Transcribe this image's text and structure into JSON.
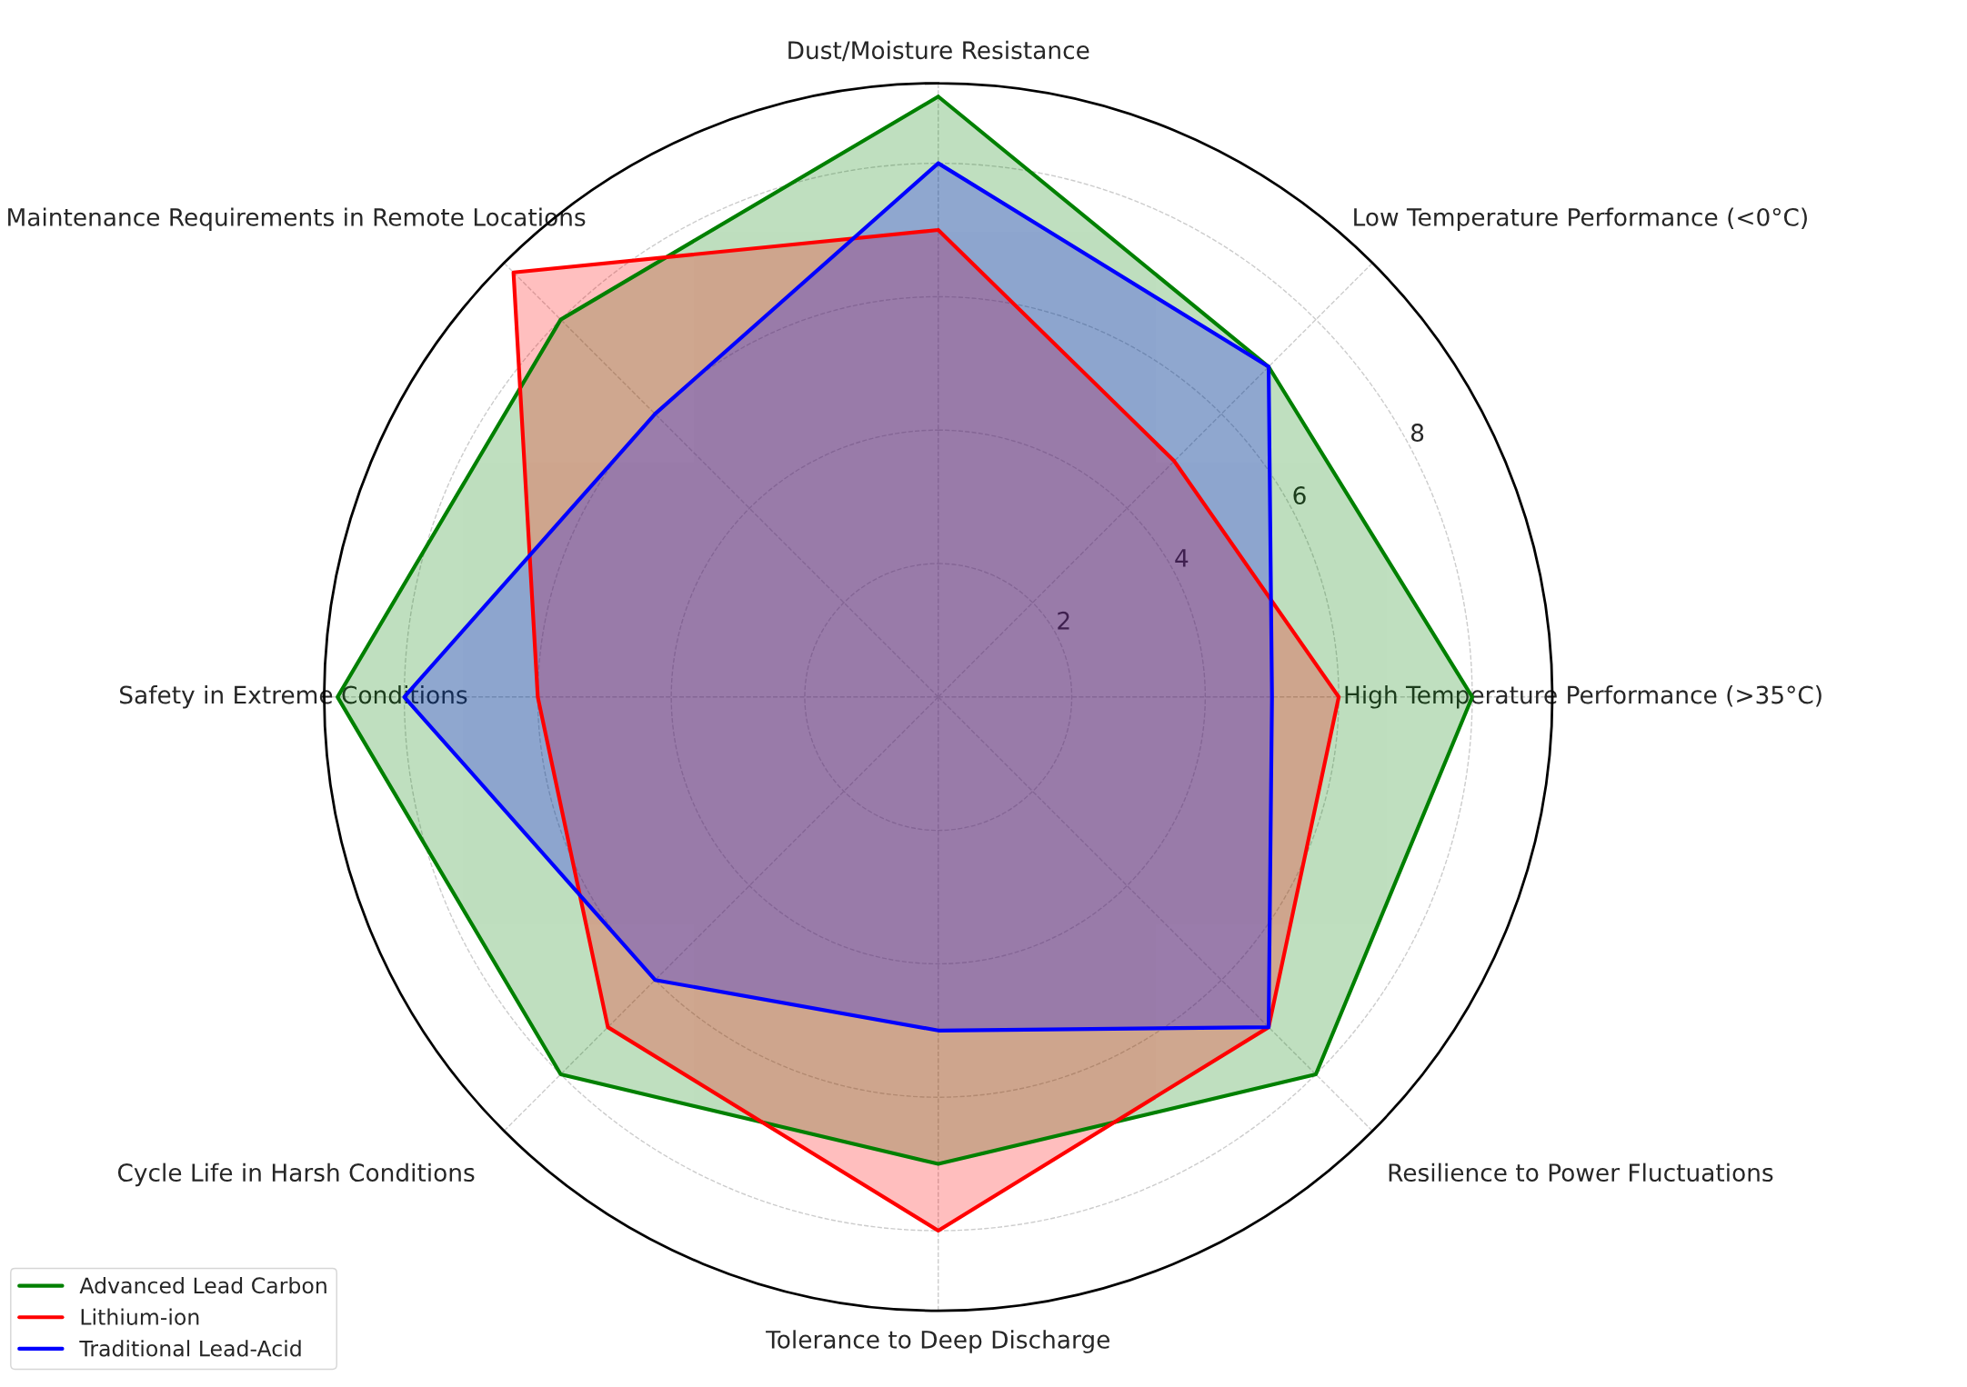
{
  "chart_data": {
    "type": "radar",
    "categories": [
      "Dust/Moisture Resistance",
      "Low Temperature Performance (<0°C)",
      "High Temperature Performance (>35°C)",
      "Resilience to Power Fluctuations",
      "Tolerance to Deep Discharge",
      "Cycle Life in Harsh Conditions",
      "Safety in Extreme Conditions",
      "Maintenance Requirements in Remote Locations"
    ],
    "series": [
      {
        "name": "Advanced Lead Carbon",
        "color": "#008000",
        "values": [
          9,
          7,
          8,
          8,
          7,
          8,
          9,
          8
        ]
      },
      {
        "name": "Lithium-ion",
        "color": "#ff0000",
        "values": [
          7,
          5,
          6,
          7,
          8,
          7,
          6,
          9
        ]
      },
      {
        "name": "Traditional Lead-Acid",
        "color": "#0000ff",
        "values": [
          8,
          7,
          5,
          7,
          5,
          6,
          8,
          6
        ]
      }
    ],
    "ylim": [
      0,
      9.2
    ],
    "yticks": [
      2,
      4,
      6,
      8
    ],
    "grid": true,
    "legend": "bottom left"
  }
}
